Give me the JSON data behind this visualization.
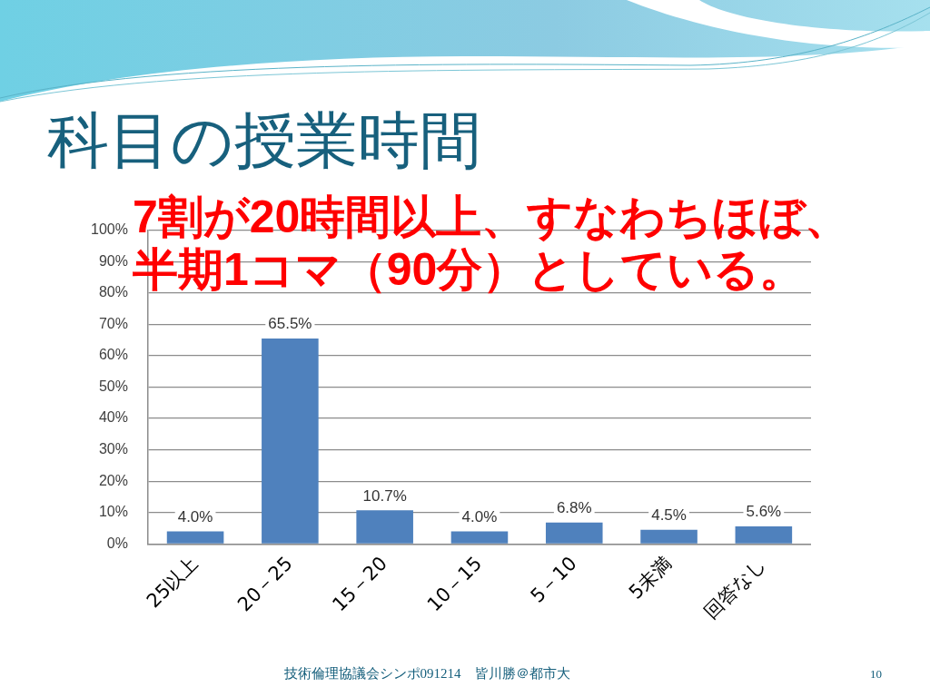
{
  "chart_data": {
    "type": "bar",
    "title": "科目の授業時間",
    "categories": [
      "25以上",
      "20－25",
      "15－20",
      "10－15",
      "5－10",
      "5未満",
      "回答なし"
    ],
    "values": [
      4.0,
      65.5,
      10.7,
      4.0,
      6.8,
      4.5,
      5.6
    ],
    "value_labels": [
      "4.0%",
      "65.5%",
      "10.7%",
      "4.0%",
      "6.8%",
      "4.5%",
      "5.6%"
    ],
    "color": "#4f81bd",
    "ylim": [
      0,
      100
    ],
    "yticks": [
      {
        "value": 0,
        "label": "0%"
      },
      {
        "value": 10,
        "label": "10%"
      },
      {
        "value": 20,
        "label": "20%"
      },
      {
        "value": 30,
        "label": "30%"
      },
      {
        "value": 40,
        "label": "40%"
      },
      {
        "value": 50,
        "label": "50%"
      },
      {
        "value": 60,
        "label": "60%"
      },
      {
        "value": 70,
        "label": "70%"
      },
      {
        "value": 80,
        "label": "80%"
      },
      {
        "value": 90,
        "label": "90%"
      },
      {
        "value": 100,
        "label": "100%"
      }
    ],
    "grid": "y",
    "annotations": [
      "7割が20時間以上、すなわちほぼ、",
      "半期1コマ（90分）としている。",
      "技術倫理協議会シンポ091214　皆川勝＠都市大",
      "10"
    ]
  }
}
